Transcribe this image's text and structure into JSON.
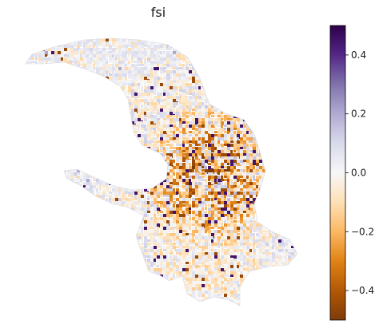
{
  "title": "fsi",
  "colormap": {
    "name": "PuOr",
    "min": -0.5,
    "max": 0.5,
    "stops": [
      "#7f3b08",
      "#b35806",
      "#e08214",
      "#fdb863",
      "#fee0b6",
      "#f7f7f7",
      "#d8daeb",
      "#b2abd2",
      "#8073ac",
      "#542788",
      "#2d004b"
    ]
  },
  "colorbar": {
    "ticks": [
      {
        "value": 0.4,
        "label": "0.4"
      },
      {
        "value": 0.2,
        "label": "0.2"
      },
      {
        "value": 0.0,
        "label": "0.0"
      },
      {
        "value": -0.2,
        "label": "−0.2"
      },
      {
        "value": -0.4,
        "label": "−0.4"
      }
    ]
  }
}
